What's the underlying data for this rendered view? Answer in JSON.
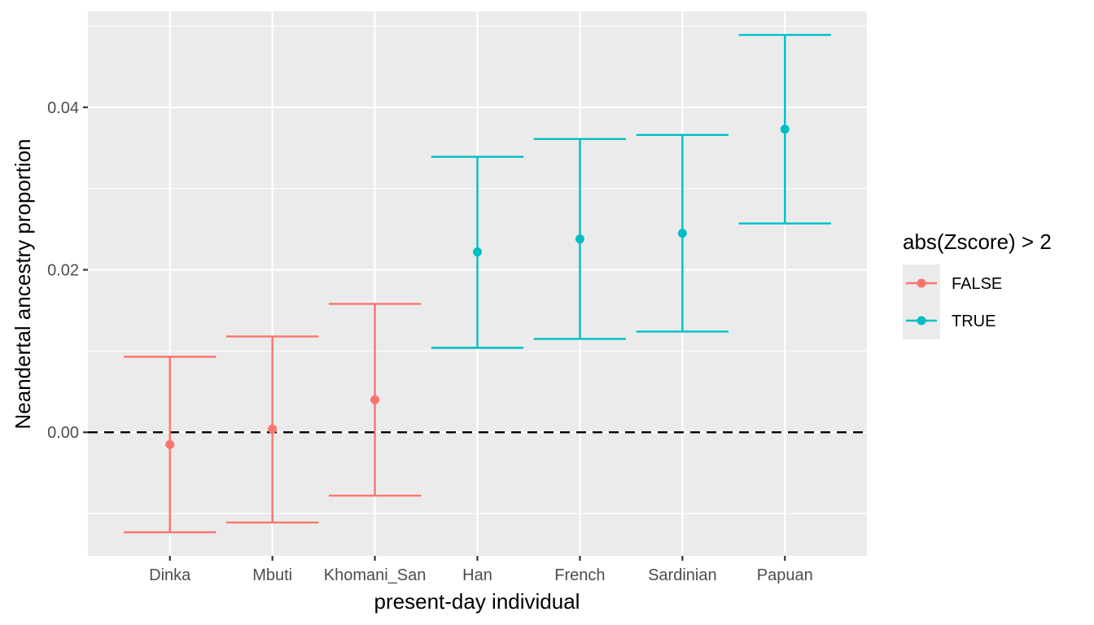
{
  "chart_data": {
    "type": "errorbar",
    "xlabel": "present-day individual",
    "ylabel": "Neandertal ancestry proportion",
    "categories": [
      "Dinka",
      "Mbuti",
      "Khomani_San",
      "Han",
      "French",
      "Sardinian",
      "Papuan"
    ],
    "points": [
      {
        "category": "Dinka",
        "y": -0.0015,
        "ymin": -0.0123,
        "ymax": 0.0093,
        "group": "FALSE"
      },
      {
        "category": "Mbuti",
        "y": 0.0004,
        "ymin": -0.0111,
        "ymax": 0.0118,
        "group": "FALSE"
      },
      {
        "category": "Khomani_San",
        "y": 0.004,
        "ymin": -0.0078,
        "ymax": 0.0158,
        "group": "FALSE"
      },
      {
        "category": "Han",
        "y": 0.0222,
        "ymin": 0.0104,
        "ymax": 0.0339,
        "group": "TRUE"
      },
      {
        "category": "French",
        "y": 0.0238,
        "ymin": 0.0115,
        "ymax": 0.0361,
        "group": "TRUE"
      },
      {
        "category": "Sardinian",
        "y": 0.0245,
        "ymin": 0.0124,
        "ymax": 0.0366,
        "group": "TRUE"
      },
      {
        "category": "Papuan",
        "y": 0.0373,
        "ymin": 0.0257,
        "ymax": 0.0489,
        "group": "TRUE"
      }
    ],
    "ylim": [
      -0.0152,
      0.0518
    ],
    "yticks": [
      0.0,
      0.02,
      0.04
    ],
    "ytick_labels": [
      "0.00",
      "0.02",
      "0.04"
    ],
    "yminor": [
      -0.01,
      0.01,
      0.03,
      0.05
    ],
    "hline": {
      "y": 0,
      "style": "dashed",
      "color": "#000000"
    },
    "legend": {
      "title": "abs(Zscore) > 2",
      "placement": "right",
      "entries": [
        {
          "label": "FALSE",
          "color": "#F8766D"
        },
        {
          "label": "TRUE",
          "color": "#00BFC4"
        }
      ]
    },
    "grid": true
  }
}
